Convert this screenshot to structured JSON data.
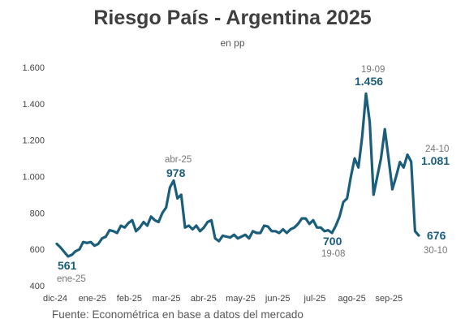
{
  "chart_data": {
    "type": "line",
    "title": "Riesgo País - Argentina 2025",
    "subtitle": "en pp",
    "source": "Fuente: Econométrica en base a datos del mercado",
    "color": "#1b5e7b",
    "ylim": [
      400,
      1600
    ],
    "yticks": [
      "1.600",
      "1.400",
      "1.200",
      "1.000",
      "800",
      "600",
      "400"
    ],
    "ytick_values": [
      1600,
      1400,
      1200,
      1000,
      800,
      600,
      400
    ],
    "xticks": [
      "dic-24",
      "ene-25",
      "feb-25",
      "mar-25",
      "abr-25",
      "may-25",
      "jun-25",
      "jul-25",
      "ago-25",
      "sep-25"
    ],
    "grid": false,
    "series": [
      {
        "values": [
          630,
          610,
          585,
          561,
          570,
          590,
          600,
          640,
          635,
          640,
          620,
          630,
          660,
          670,
          705,
          700,
          690,
          730,
          720,
          745,
          760,
          700,
          720,
          750,
          730,
          780,
          760,
          750,
          800,
          830,
          940,
          978,
          880,
          900,
          720,
          730,
          710,
          730,
          700,
          720,
          750,
          760,
          660,
          645,
          675,
          670,
          665,
          680,
          660,
          670,
          680,
          660,
          700,
          690,
          690,
          730,
          725,
          700,
          700,
          690,
          710,
          690,
          710,
          720,
          740,
          770,
          770,
          740,
          760,
          720,
          720,
          700,
          705,
          690,
          730,
          780,
          860,
          880,
          1000,
          1100,
          1050,
          1220,
          1456,
          1300,
          900,
          1000,
          1100,
          1260,
          1100,
          930,
          1000,
          1080,
          1050,
          1120,
          1081,
          700,
          676
        ]
      }
    ],
    "annotations": [
      {
        "value": "561",
        "label": "ene-25"
      },
      {
        "value": "978",
        "label": "abr-25"
      },
      {
        "value": "700",
        "label": "19-08"
      },
      {
        "value": "1.456",
        "label": "19-09"
      },
      {
        "value": "1.081",
        "label": "24-10"
      },
      {
        "value": "676",
        "label": "30-10"
      }
    ]
  }
}
